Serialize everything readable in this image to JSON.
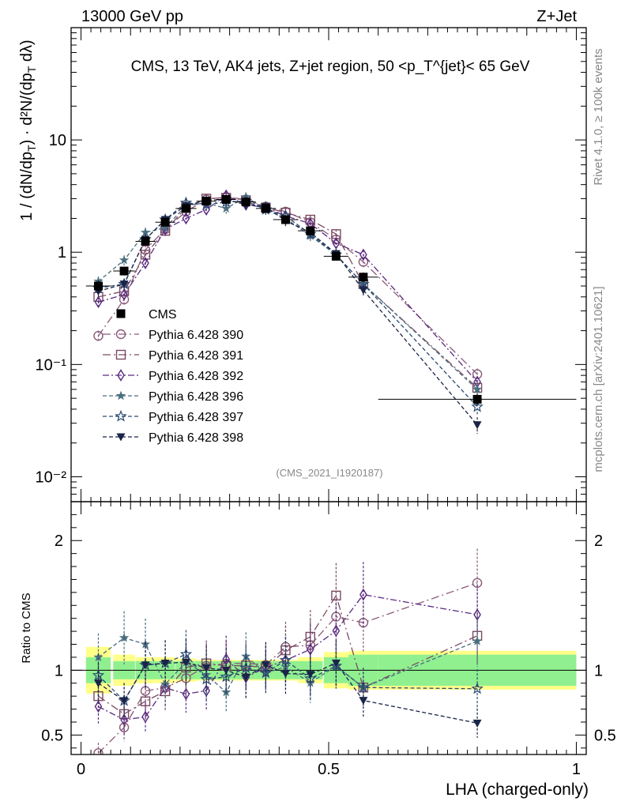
{
  "header": {
    "energy_label": "13000 GeV pp",
    "process_label": "Z+Jet"
  },
  "side_labels": {
    "rivet": "Rivet 4.1.0, ≥ 100k events",
    "mcplots": "mcplots.cern.ch [arXiv:2401.10621]"
  },
  "chart_data": {
    "type": "scatter",
    "title": "CMS, 13 TeV, AK4 jets, Z+jet region, 50 <p_T^{jet}< 65 GeV",
    "watermark": "(CMS_2021_I1920187)",
    "xlabel": "LHA (charged-only)",
    "ylabel": "1/(dN/dpT) d²N/(dpT dλ)",
    "ratio_ylabel": "Ratio to CMS",
    "xlim": [
      -0.02,
      1.02
    ],
    "ylim": [
      0.006,
      100
    ],
    "ratio_ylim": [
      0.35,
      2.3
    ],
    "x_ticks": [
      "0",
      "0.5",
      "1"
    ],
    "y_ticks": [
      "10⁻²",
      "10⁻¹",
      "1",
      "10"
    ],
    "ratio_ticks": [
      "0.5",
      "1",
      "2"
    ],
    "x": [
      0.035,
      0.087,
      0.13,
      0.17,
      0.212,
      0.253,
      0.293,
      0.333,
      0.373,
      0.413,
      0.463,
      0.515,
      0.57,
      0.8
    ],
    "xerr": [
      0.025,
      0.022,
      0.02,
      0.02,
      0.021,
      0.02,
      0.02,
      0.02,
      0.02,
      0.025,
      0.025,
      0.025,
      0.03,
      0.2
    ],
    "data": {
      "name": "CMS",
      "values": [
        0.5,
        0.68,
        1.25,
        1.85,
        2.45,
        2.85,
        2.95,
        2.8,
        2.45,
        1.95,
        1.55,
        0.92,
        0.6,
        0.049
      ],
      "errors": [
        0.06,
        0.06,
        0.08,
        0.1,
        0.12,
        0.12,
        0.12,
        0.12,
        0.11,
        0.1,
        0.09,
        0.07,
        0.06,
        0.006
      ],
      "band_inner": [
        0.1,
        0.07,
        0.07,
        0.07,
        0.07,
        0.07,
        0.07,
        0.07,
        0.07,
        0.07,
        0.07,
        0.1,
        0.12,
        0.12
      ],
      "band_outer": [
        0.18,
        0.12,
        0.1,
        0.1,
        0.09,
        0.08,
        0.08,
        0.08,
        0.08,
        0.08,
        0.1,
        0.14,
        0.15,
        0.15
      ]
    },
    "series": [
      {
        "name": "Pythia 6.428 390",
        "marker": "circle-open",
        "color": "#8a5a7a",
        "dash": "10,4,2,4",
        "values": [
          0.18,
          0.38,
          1.05,
          1.6,
          2.3,
          2.95,
          3.1,
          2.95,
          2.55,
          2.3,
          1.85,
          1.3,
          0.82,
          0.082
        ]
      },
      {
        "name": "Pythia 6.428 391",
        "marker": "square-open",
        "color": "#7a4a62",
        "dash": "10,4,2,4",
        "values": [
          0.4,
          0.45,
          0.95,
          1.55,
          2.5,
          3.0,
          3.05,
          2.9,
          2.5,
          2.25,
          1.95,
          1.45,
          0.52,
          0.062
        ]
      },
      {
        "name": "Pythia 6.428 392",
        "marker": "diamond-open",
        "color": "#5a2a80",
        "dash": "8,3,2,3",
        "values": [
          0.36,
          0.42,
          0.8,
          1.6,
          2.0,
          2.4,
          3.2,
          2.65,
          2.5,
          2.1,
          1.8,
          1.2,
          0.95,
          0.07
        ]
      },
      {
        "name": "Pythia 6.428 396",
        "marker": "star-filled",
        "color": "#4a6e7e",
        "dash": "5,3",
        "values": [
          0.55,
          0.85,
          1.5,
          1.65,
          2.6,
          2.75,
          2.45,
          3.1,
          2.4,
          2.0,
          1.4,
          0.95,
          0.52,
          0.06
        ]
      },
      {
        "name": "Pythia 6.428 397",
        "marker": "star-open",
        "color": "#2a4a72",
        "dash": "5,3",
        "values": [
          0.48,
          0.52,
          1.3,
          1.95,
          2.75,
          2.65,
          2.8,
          2.85,
          2.4,
          2.1,
          1.45,
          0.95,
          0.52,
          0.042
        ]
      },
      {
        "name": "Pythia 6.428 398",
        "marker": "triangle-down-filled",
        "color": "#1a2448",
        "dash": "5,3",
        "values": [
          0.45,
          0.52,
          1.3,
          1.95,
          2.6,
          2.9,
          2.95,
          2.65,
          2.55,
          1.9,
          1.5,
          0.97,
          0.46,
          0.029
        ]
      }
    ],
    "legend_position": "middle-left"
  }
}
